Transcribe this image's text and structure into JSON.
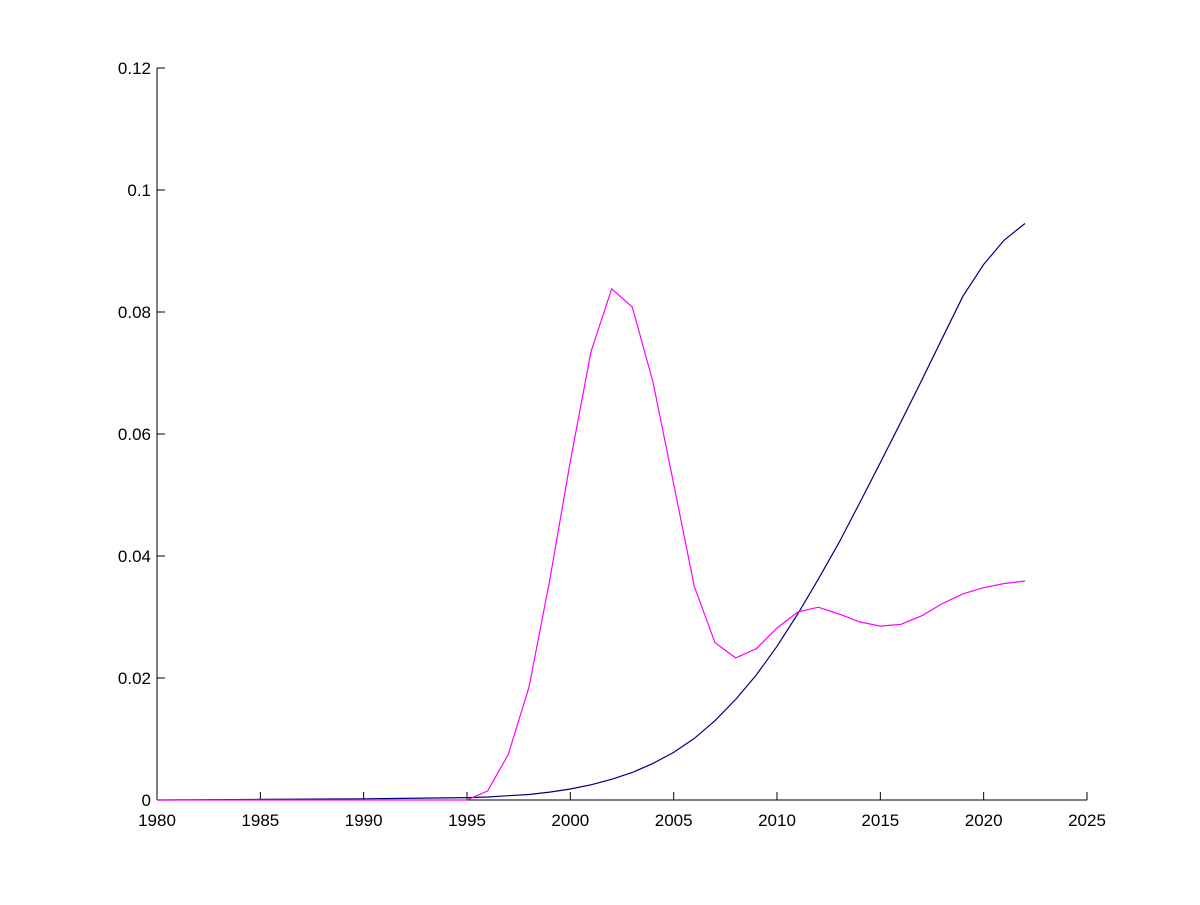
{
  "chart_data": {
    "type": "line",
    "title": "",
    "xlabel": "",
    "ylabel": "",
    "xlim": [
      1980,
      2025
    ],
    "ylim": [
      0,
      0.12
    ],
    "grid": false,
    "legend": "none",
    "x_ticks": [
      1980,
      1985,
      1990,
      1995,
      2000,
      2005,
      2010,
      2015,
      2020,
      2025
    ],
    "x_tick_labels": [
      "1980",
      "1985",
      "1990",
      "1995",
      "2000",
      "2005",
      "2010",
      "2015",
      "2020",
      "2025"
    ],
    "y_ticks": [
      0,
      0.02,
      0.04,
      0.06,
      0.08,
      0.1,
      0.12
    ],
    "y_tick_labels": [
      "0",
      "0.02",
      "0.04",
      "0.06",
      "0.08",
      "0.1",
      "0.12"
    ],
    "series": [
      {
        "color": "#00007f",
        "points": [
          [
            1980,
            0.0
          ],
          [
            1985,
            0.0001
          ],
          [
            1990,
            0.0002
          ],
          [
            1995,
            0.0004
          ],
          [
            1996,
            0.0005
          ],
          [
            1997,
            0.0007
          ],
          [
            1998,
            0.0009
          ],
          [
            1999,
            0.0013
          ],
          [
            2000,
            0.0018
          ],
          [
            2001,
            0.0025
          ],
          [
            2002,
            0.0034
          ],
          [
            2003,
            0.0045
          ],
          [
            2004,
            0.006
          ],
          [
            2005,
            0.0078
          ],
          [
            2006,
            0.0101
          ],
          [
            2007,
            0.013
          ],
          [
            2008,
            0.0165
          ],
          [
            2009,
            0.0205
          ],
          [
            2010,
            0.0252
          ],
          [
            2011,
            0.0305
          ],
          [
            2012,
            0.0362
          ],
          [
            2013,
            0.0422
          ],
          [
            2014,
            0.0487
          ],
          [
            2015,
            0.0553
          ],
          [
            2016,
            0.062
          ],
          [
            2017,
            0.0688
          ],
          [
            2018,
            0.0757
          ],
          [
            2019,
            0.0826
          ],
          [
            2020,
            0.0878
          ],
          [
            2021,
            0.0918
          ],
          [
            2022,
            0.0945
          ]
        ]
      },
      {
        "color": "#ff00ff",
        "points": [
          [
            1980,
            0.0
          ],
          [
            1995,
            0.0
          ],
          [
            1996,
            0.0015
          ],
          [
            1997,
            0.0075
          ],
          [
            1998,
            0.0185
          ],
          [
            1999,
            0.036
          ],
          [
            2000,
            0.0555
          ],
          [
            2001,
            0.0735
          ],
          [
            2002,
            0.0838
          ],
          [
            2003,
            0.0808
          ],
          [
            2004,
            0.0685
          ],
          [
            2005,
            0.0518
          ],
          [
            2006,
            0.035
          ],
          [
            2007,
            0.0258
          ],
          [
            2008,
            0.0233
          ],
          [
            2009,
            0.0248
          ],
          [
            2010,
            0.0282
          ],
          [
            2011,
            0.0308
          ],
          [
            2012,
            0.0316
          ],
          [
            2013,
            0.0305
          ],
          [
            2014,
            0.0292
          ],
          [
            2015,
            0.0285
          ],
          [
            2016,
            0.0288
          ],
          [
            2017,
            0.0302
          ],
          [
            2018,
            0.0322
          ],
          [
            2019,
            0.0338
          ],
          [
            2020,
            0.0348
          ],
          [
            2021,
            0.0355
          ],
          [
            2022,
            0.0359
          ]
        ]
      }
    ]
  }
}
